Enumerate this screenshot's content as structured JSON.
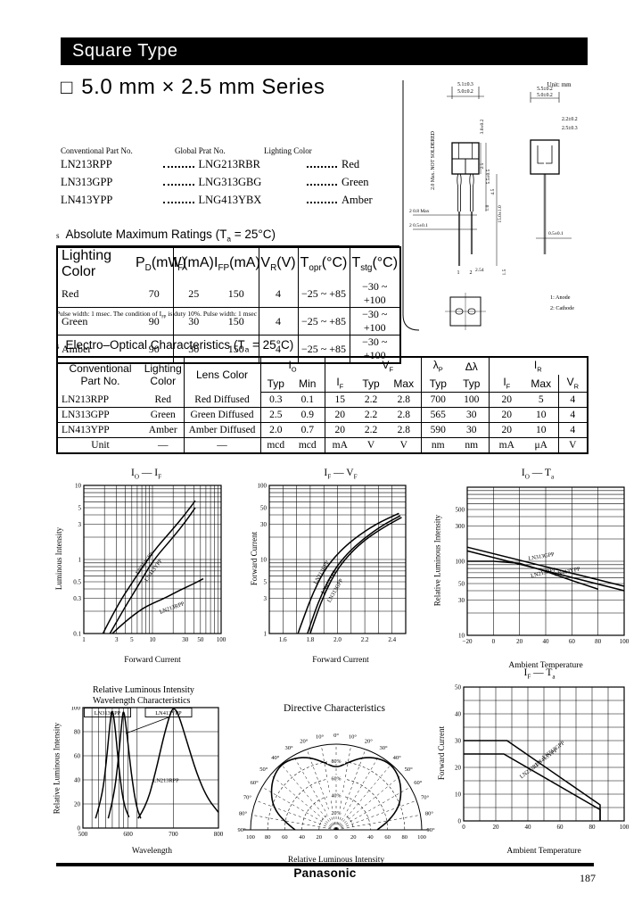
{
  "header": {
    "banner": "Square Type",
    "series_square": "□",
    "series_title": "5.0 mm × 2.5 mm Series"
  },
  "parts_list": {
    "headers": [
      "Conventional Part No.",
      "Global Prat No.",
      "Lighting Color"
    ],
    "rows": [
      {
        "conventional": "LN213RPP",
        "global": "LNG213RBR",
        "color": "Red"
      },
      {
        "conventional": "LN313GPP",
        "global": "LNG313GBG",
        "color": "Green"
      },
      {
        "conventional": "LN413YPP",
        "global": "LNG413YBX",
        "color": "Amber"
      }
    ]
  },
  "drawing": {
    "labels": {
      "unit": "Unit: mm",
      "front_w1": "5.1±0.3",
      "front_w2": "5.0±0.2",
      "front_h": "3.0±0.2",
      "seat": "2.5",
      "body_h2": "5.5±0.5",
      "lead_len1": "4.5",
      "lead_gap": "1.0",
      "lead_total": "15.0±1.0",
      "not_soldered": "2.0 Max. NOT SOLDERED",
      "lead_w": "2  0.8 Max",
      "lead_d": "2  0.5±0.1",
      "pitch": "2.54",
      "stand": "1.5",
      "side_w1": "5.5±0.2",
      "side_w2": "5.0±0.2",
      "side_t1": "2.2±0.2",
      "side_t2": "2.5±0.3",
      "tip": "0.5±0.1",
      "pin1": "1",
      "pin2": "2",
      "anode": "1: Anode",
      "cathode": "2: Cathode"
    }
  },
  "abs_max": {
    "bullet": "s",
    "title": "Absolute Maximum Ratings (T{a} = 25°C)",
    "headers": [
      "Lighting Color",
      "P{D}(mW)",
      "I{F}(mA)",
      "I{FP}(mA)",
      "V{R}(V)",
      "T{opr}(°C)",
      "T{stg}(°C)"
    ],
    "rows": [
      [
        "Red",
        "70",
        "25",
        "150",
        "4",
        "−25 ~ +85",
        "−30 ~ +100"
      ],
      [
        "Green",
        "90",
        "30",
        "150",
        "4",
        "−25 ~ +85",
        "−30 ~ +100"
      ],
      [
        "Amber",
        "90",
        "30",
        "150",
        "4",
        "−25 ~ +85",
        "−30 ~ +100"
      ]
    ],
    "footnote": "Pulse width: 1 msec. The condition of I{FP} is duty 10%. Pulse width: 1 msec"
  },
  "eo": {
    "bullet": "s",
    "title": "Electro–Optical Characteristics (T{a} = 25°C)",
    "head": {
      "part": [
        "Conventional",
        "Part No."
      ],
      "lighting": [
        "Lighting",
        "Color"
      ],
      "lens": "Lens Color",
      "io": "I{O}",
      "vf": "V{F}",
      "lp": "λ{P}",
      "dl": "Δλ",
      "ir": "I{R}",
      "sub": [
        "Typ",
        "Min",
        "I{F}",
        "Typ",
        "Max",
        "Typ",
        "Typ",
        "I{F}",
        "Max",
        "V{R}"
      ]
    },
    "rows": [
      [
        "LN213RPP",
        "Red",
        "Red Diffused",
        "0.3",
        "0.1",
        "15",
        "2.2",
        "2.8",
        "700",
        "100",
        "20",
        "5",
        "4"
      ],
      [
        "LN313GPP",
        "Green",
        "Green Diffused",
        "2.5",
        "0.9",
        "20",
        "2.2",
        "2.8",
        "565",
        "30",
        "20",
        "10",
        "4"
      ],
      [
        "LN413YPP",
        "Amber",
        "Amber Diffused",
        "2.0",
        "0.7",
        "20",
        "2.2",
        "2.8",
        "590",
        "30",
        "20",
        "10",
        "4"
      ]
    ],
    "unit_row": [
      "Unit",
      "—",
      "—",
      "mcd",
      "mcd",
      "mA",
      "V",
      "V",
      "nm",
      "nm",
      "mA",
      "μA",
      "V"
    ]
  },
  "chart_data": [
    {
      "id": "io_vs_if",
      "type": "line",
      "title": "I{O} — I{F}",
      "xlabel": "Forward Current",
      "ylabel": "Luminous Intensity",
      "xscale": "log",
      "yscale": "log",
      "xlim": [
        1,
        100
      ],
      "ylim": [
        0.1,
        10
      ],
      "xticks": [
        [
          1,
          "1"
        ],
        [
          3,
          "3"
        ],
        [
          5,
          "5"
        ],
        [
          10,
          "10"
        ],
        [
          30,
          "30"
        ],
        [
          50,
          "50"
        ],
        [
          100,
          "100"
        ]
      ],
      "yticks": [
        [
          0.1,
          "0.1"
        ],
        [
          0.3,
          "0.3"
        ],
        [
          0.5,
          "0.5"
        ],
        [
          1,
          "1"
        ],
        [
          3,
          "3"
        ],
        [
          5,
          "5"
        ],
        [
          10,
          "10"
        ]
      ],
      "series": [
        {
          "name": "LN313GPP",
          "points": [
            [
              1.9,
              0.1
            ],
            [
              3,
              0.23
            ],
            [
              5,
              0.48
            ],
            [
              10,
              1.25
            ],
            [
              20,
              2.6
            ],
            [
              30,
              4.1
            ],
            [
              42,
              6.2
            ]
          ]
        },
        {
          "name": "LN413YPP",
          "points": [
            [
              2.4,
              0.1
            ],
            [
              4,
              0.23
            ],
            [
              6,
              0.42
            ],
            [
              10,
              0.95
            ],
            [
              20,
              2.0
            ],
            [
              30,
              3.2
            ],
            [
              42,
              5.0
            ]
          ]
        },
        {
          "name": "LN213RPP",
          "points": [
            [
              2.6,
              0.1
            ],
            [
              4,
              0.145
            ],
            [
              7,
              0.215
            ],
            [
              10,
              0.255
            ],
            [
              15,
              0.3
            ],
            [
              25,
              0.385
            ],
            [
              40,
              0.47
            ],
            [
              55,
              0.55
            ]
          ]
        }
      ]
    },
    {
      "id": "if_vs_vf",
      "type": "line",
      "title": "I{F} — V{F}",
      "xlabel": "Forward Current",
      "ylabel": "Forward Current",
      "xscale": "linear",
      "yscale": "log",
      "xlim": [
        1.5,
        2.5
      ],
      "ylim": [
        1,
        100
      ],
      "xticks": [
        [
          1.6,
          "1.6"
        ],
        [
          1.8,
          "1.8"
        ],
        [
          2.0,
          "2.0"
        ],
        [
          2.2,
          "2.2"
        ],
        [
          2.4,
          "2.4"
        ]
      ],
      "yticks": [
        [
          1,
          "1"
        ],
        [
          3,
          "3"
        ],
        [
          5,
          "5"
        ],
        [
          10,
          "10"
        ],
        [
          30,
          "30"
        ],
        [
          50,
          "50"
        ],
        [
          100,
          "100"
        ]
      ],
      "series": [
        {
          "name": "LN213RPP",
          "points": [
            [
              1.71,
              1
            ],
            [
              1.76,
              1.8
            ],
            [
              1.82,
              3.5
            ],
            [
              1.9,
              7
            ],
            [
              2.0,
              12
            ],
            [
              2.12,
              19
            ],
            [
              2.28,
              30
            ],
            [
              2.45,
              42
            ]
          ]
        },
        {
          "name": "LN413YPP",
          "points": [
            [
              1.78,
              1
            ],
            [
              1.83,
              1.9
            ],
            [
              1.89,
              3.6
            ],
            [
              1.97,
              7
            ],
            [
              2.07,
              12
            ],
            [
              2.19,
              19
            ],
            [
              2.33,
              29
            ],
            [
              2.46,
              39
            ]
          ]
        },
        {
          "name": "LN313GPP",
          "points": [
            [
              1.8,
              1
            ],
            [
              1.85,
              1.9
            ],
            [
              1.91,
              3.6
            ],
            [
              1.99,
              7
            ],
            [
              2.09,
              12
            ],
            [
              2.21,
              19
            ],
            [
              2.35,
              28
            ],
            [
              2.47,
              37
            ]
          ]
        }
      ]
    },
    {
      "id": "io_vs_ta",
      "type": "line",
      "title": "I{O} — T{a}",
      "xlabel": "Ambient Temperature",
      "ylabel": "Relative Luminous Intensity",
      "xscale": "linear",
      "yscale": "log",
      "xlim": [
        -20,
        100
      ],
      "ylim": [
        10,
        1000
      ],
      "xticks": [
        [
          -20,
          "−20"
        ],
        [
          0,
          "0"
        ],
        [
          20,
          "20"
        ],
        [
          40,
          "40"
        ],
        [
          60,
          "60"
        ],
        [
          80,
          "80"
        ],
        [
          100,
          "100"
        ]
      ],
      "yticks": [
        [
          10,
          "10"
        ],
        [
          30,
          "30"
        ],
        [
          50,
          "50"
        ],
        [
          100,
          "100"
        ],
        [
          300,
          "300"
        ],
        [
          500,
          "500"
        ]
      ],
      "series": [
        {
          "name": "LN313GPP",
          "points": [
            [
              -20,
              155
            ],
            [
              100,
              46
            ]
          ]
        },
        {
          "name": "LN413YPP",
          "points": [
            [
              -20,
              138
            ],
            [
              100,
              40
            ]
          ]
        },
        {
          "name": "LN213RPP",
          "points": [
            [
              -20,
              100
            ],
            [
              0,
              100
            ],
            [
              20,
              94
            ],
            [
              40,
              73
            ],
            [
              60,
              55
            ],
            [
              80,
              42
            ]
          ]
        }
      ]
    },
    {
      "id": "wavelength",
      "type": "line",
      "title1": "Relative Luminous Intensity",
      "title2": "Wavelength Characteristics",
      "xlabel": "Wavelength",
      "ylabel": "Relative Luminous Intensity",
      "xscale": "linear",
      "yscale": "linear",
      "xlim": [
        500,
        800
      ],
      "ylim": [
        0,
        100
      ],
      "xticks": [
        [
          500,
          "500"
        ],
        [
          600,
          "600"
        ],
        [
          700,
          "700"
        ],
        [
          800,
          "800"
        ]
      ],
      "yticks": [
        [
          0,
          "0"
        ],
        [
          20,
          "20"
        ],
        [
          40,
          "40"
        ],
        [
          60,
          "60"
        ],
        [
          80,
          "80"
        ],
        [
          100,
          "100"
        ]
      ],
      "series": [
        {
          "name": "LN313GPP",
          "points": [
            [
              528,
              8
            ],
            [
              542,
              25
            ],
            [
              552,
              55
            ],
            [
              560,
              88
            ],
            [
              565,
              100
            ],
            [
              571,
              85
            ],
            [
              580,
              48
            ],
            [
              590,
              20
            ],
            [
              602,
              9
            ]
          ]
        },
        {
          "name": "LN413YPP",
          "points": [
            [
              556,
              8
            ],
            [
              568,
              25
            ],
            [
              578,
              55
            ],
            [
              586,
              88
            ],
            [
              590,
              100
            ],
            [
              597,
              80
            ],
            [
              607,
              45
            ],
            [
              618,
              18
            ],
            [
              628,
              8
            ]
          ]
        },
        {
          "name": "LN213RPP",
          "points": [
            [
              622,
              8
            ],
            [
              640,
              18
            ],
            [
              660,
              45
            ],
            [
              680,
              78
            ],
            [
              695,
              97
            ],
            [
              702,
              100
            ],
            [
              712,
              94
            ],
            [
              730,
              72
            ],
            [
              752,
              45
            ],
            [
              775,
              25
            ],
            [
              800,
              13
            ]
          ]
        }
      ]
    },
    {
      "id": "directive",
      "type": "polar",
      "title": "Directive Characteristics",
      "xlabel": "Relative Luminous Intensity",
      "angle_ticks": [
        0,
        10,
        20,
        30,
        40,
        50,
        60,
        70,
        80,
        90
      ],
      "radial_ticks": [
        20,
        40,
        60,
        80
      ],
      "bottom_ticks": [
        "100",
        "80",
        "60",
        "40",
        "20",
        "0",
        "20",
        "40",
        "60",
        "80",
        "100"
      ],
      "profile": [
        [
          0,
          72
        ],
        [
          10,
          80
        ],
        [
          20,
          90
        ],
        [
          30,
          97
        ],
        [
          40,
          100
        ],
        [
          50,
          96
        ],
        [
          60,
          88
        ],
        [
          70,
          78
        ],
        [
          80,
          63
        ],
        [
          90,
          48
        ]
      ]
    },
    {
      "id": "if_vs_ta",
      "type": "line",
      "title": "I{F} — T{a}",
      "xlabel": "Ambient Temperature",
      "ylabel": "Forward Current",
      "xscale": "linear",
      "yscale": "linear",
      "xlim": [
        0,
        100
      ],
      "ylim": [
        0,
        50
      ],
      "xticks": [
        [
          0,
          "0"
        ],
        [
          20,
          "20"
        ],
        [
          40,
          "40"
        ],
        [
          60,
          "60"
        ],
        [
          80,
          "80"
        ],
        [
          100,
          "100"
        ]
      ],
      "yticks": [
        [
          0,
          "0"
        ],
        [
          10,
          "10"
        ],
        [
          20,
          "20"
        ],
        [
          30,
          "30"
        ],
        [
          40,
          "40"
        ],
        [
          50,
          "50"
        ]
      ],
      "series": [
        {
          "name": "LN313GPP",
          "name2": "LN413YPP",
          "points": [
            [
              0,
              30
            ],
            [
              27,
              30
            ],
            [
              85,
              6
            ],
            [
              85,
              0
            ]
          ]
        },
        {
          "name": "LN213RPP",
          "points": [
            [
              0,
              25
            ],
            [
              25,
              25
            ],
            [
              85,
              4.2
            ],
            [
              85,
              0
            ]
          ]
        }
      ]
    }
  ],
  "footer": {
    "brand": "Panasonic",
    "page_number": "187"
  }
}
